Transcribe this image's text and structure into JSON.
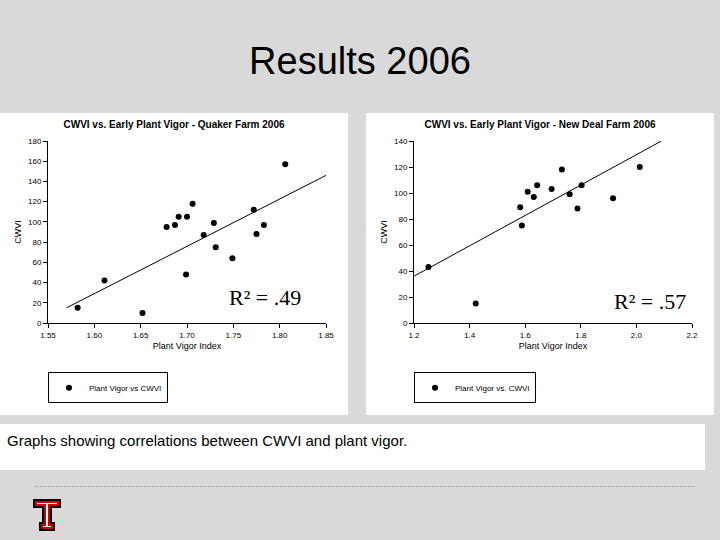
{
  "slide": {
    "title": "Results 2006",
    "caption": "Graphs showing correlations between CWVI and plant vigor."
  },
  "chart_data": [
    {
      "type": "scatter",
      "title": "CWVI vs. Early Plant Vigor - Quaker Farm 2006",
      "x_label": "Plant Vigor Index",
      "y_label": "CWVI",
      "xlim": [
        1.55,
        1.85
      ],
      "xticks": [
        1.55,
        {
          "value": 1.6,
          "label": "1.60"
        },
        1.65,
        {
          "value": 1.7,
          "label": "1.70"
        },
        1.75,
        {
          "value": 1.8,
          "label": "1.80"
        },
        1.85
      ],
      "ylim": [
        0,
        180
      ],
      "yticks": [
        0,
        20,
        40,
        60,
        80,
        100,
        120,
        140,
        160,
        180
      ],
      "grid": false,
      "legend": "bottom",
      "annotations": [
        "R² = .49"
      ],
      "series": [
        {
          "name": "Plant Vigor vs CWVI",
          "color": "#000000",
          "marker": "circle",
          "x": [
            1.582,
            1.611,
            1.652,
            1.678,
            1.687,
            1.691,
            1.7,
            1.699,
            1.706,
            1.718,
            1.729,
            1.731,
            1.749,
            1.772,
            1.775,
            1.783,
            1.806
          ],
          "values": [
            15,
            42,
            10,
            95,
            97,
            105,
            105,
            48,
            118,
            87,
            99,
            75,
            64,
            112,
            88,
            97,
            157
          ]
        },
        {
          "type": "line",
          "color": "#000000",
          "line_style": "solid",
          "x": [
            1.57,
            1.85
          ],
          "values": [
            15,
            146
          ]
        }
      ]
    },
    {
      "type": "scatter",
      "title": "CWVI vs. Early Plant Vigor - New Deal Farm 2006",
      "x_label": "Plant Vigor Index",
      "y_label": "CWVI",
      "xlim": [
        1.2,
        2.2
      ],
      "xticks": [
        1.2,
        1.4,
        1.6,
        1.8,
        {
          "value": 2,
          "label": "2.0"
        },
        2.2
      ],
      "ylim": [
        0,
        140
      ],
      "yticks": [
        0,
        20,
        40,
        60,
        80,
        100,
        120,
        140
      ],
      "grid": false,
      "legend": "bottom",
      "annotations": [
        "R² = .57"
      ],
      "series": [
        {
          "name": "Plant Vigor vs. CWVI",
          "color": "#000000",
          "marker": "circle",
          "x": [
            1.252,
            1.422,
            1.582,
            1.588,
            1.609,
            1.631,
            1.643,
            1.695,
            1.732,
            1.76,
            1.788,
            1.803,
            1.916,
            2.012
          ],
          "values": [
            43,
            15,
            89,
            75,
            101,
            97,
            106,
            103,
            118,
            99,
            88,
            106,
            96,
            120
          ]
        },
        {
          "type": "line",
          "color": "#000000",
          "line_style": "solid",
          "x": [
            1.2,
            2.09
          ],
          "values": [
            36,
            140
          ]
        }
      ]
    }
  ]
}
